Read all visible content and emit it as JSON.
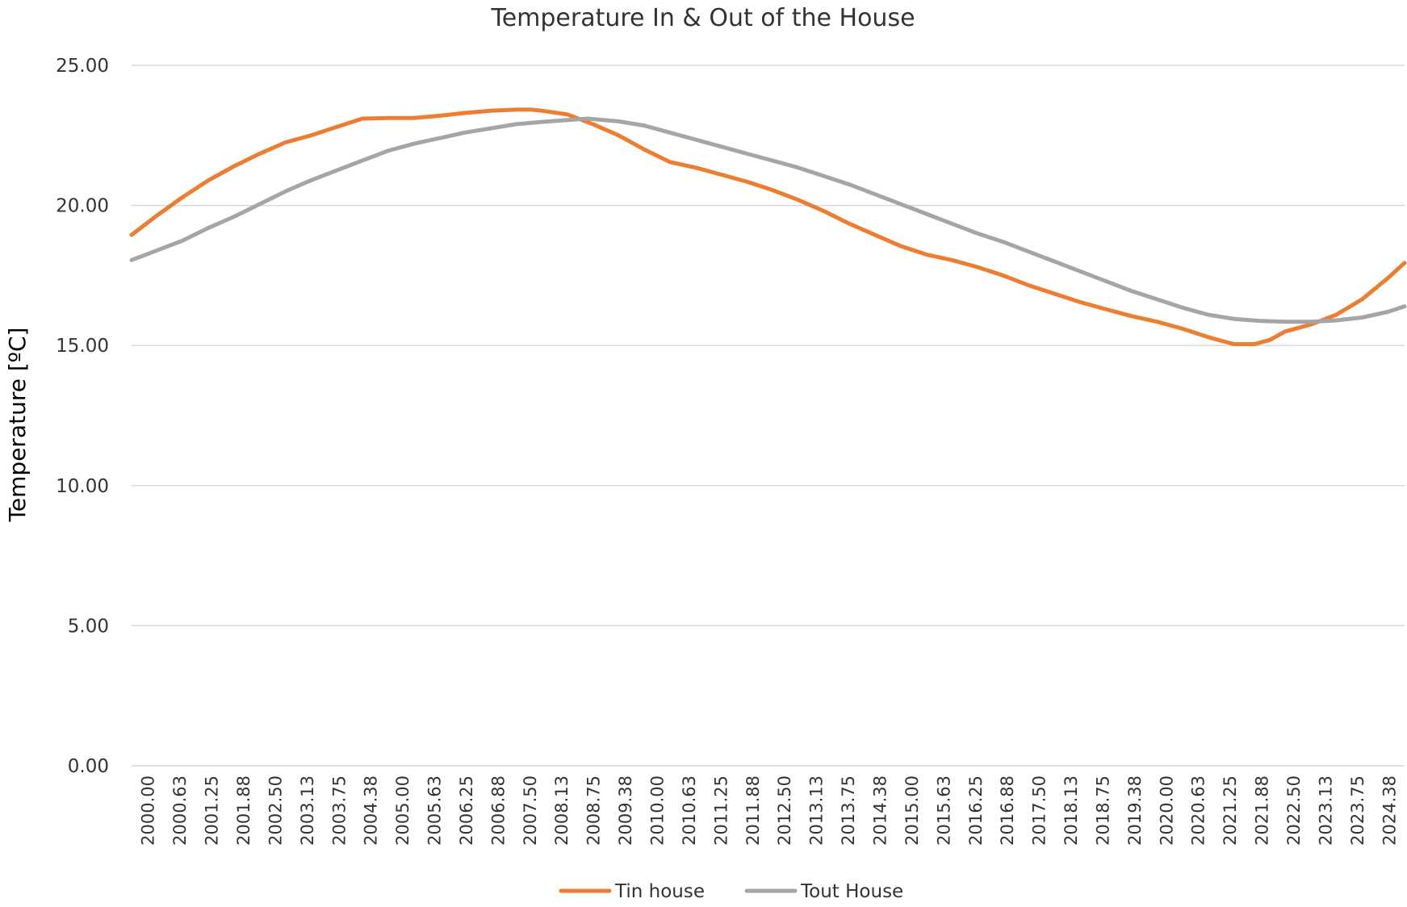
{
  "chart_data": {
    "type": "line",
    "title": "Temperature In & Out of the House",
    "xlabel": "",
    "ylabel": "Temperature  [ºC]",
    "ylim": [
      0,
      25
    ],
    "yticks": [
      "0.00",
      "5.00",
      "10.00",
      "15.00",
      "20.00",
      "25.00"
    ],
    "xlim": [
      2000.0,
      2024.83
    ],
    "xtick_labels": [
      "2000.00",
      "2000.63",
      "2001.25",
      "2001.88",
      "2002.50",
      "2003.13",
      "2003.75",
      "2004.38",
      "2005.00",
      "2005.63",
      "2006.25",
      "2006.88",
      "2007.50",
      "2008.13",
      "2008.75",
      "2009.38",
      "2010.00",
      "2010.63",
      "2011.25",
      "2011.88",
      "2012.50",
      "2013.13",
      "2013.75",
      "2014.38",
      "2015.00",
      "2015.63",
      "2016.25",
      "2016.88",
      "2017.50",
      "2018.13",
      "2018.75",
      "2019.38",
      "2020.00",
      "2020.63",
      "2021.25",
      "2021.88",
      "2022.50",
      "2023.13",
      "2023.75",
      "2024.38"
    ],
    "grid": true,
    "legend_position": "bottom",
    "series": [
      {
        "name": "Tin house",
        "color": "#ED7D31",
        "x": [
          2000.0,
          2000.5,
          2001.0,
          2001.5,
          2002.0,
          2002.5,
          2003.0,
          2003.5,
          2004.0,
          2004.5,
          2005.0,
          2005.5,
          2006.0,
          2006.5,
          2007.0,
          2007.5,
          2007.8,
          2008.0,
          2008.5,
          2009.0,
          2009.5,
          2010.0,
          2010.5,
          2011.0,
          2011.5,
          2012.0,
          2012.5,
          2013.0,
          2013.5,
          2014.0,
          2014.5,
          2015.0,
          2015.5,
          2016.0,
          2016.5,
          2017.0,
          2017.5,
          2018.0,
          2018.5,
          2019.0,
          2019.5,
          2020.0,
          2020.5,
          2021.0,
          2021.5,
          2021.9,
          2022.2,
          2022.5,
          2023.0,
          2023.5,
          2024.0,
          2024.5,
          2024.83
        ],
        "values": [
          18.95,
          19.65,
          20.3,
          20.9,
          21.4,
          21.85,
          22.25,
          22.5,
          22.8,
          23.1,
          23.12,
          23.12,
          23.2,
          23.3,
          23.38,
          23.42,
          23.42,
          23.38,
          23.25,
          22.9,
          22.5,
          22.0,
          21.55,
          21.35,
          21.1,
          20.85,
          20.55,
          20.2,
          19.8,
          19.35,
          18.95,
          18.55,
          18.25,
          18.05,
          17.8,
          17.5,
          17.15,
          16.85,
          16.55,
          16.3,
          16.05,
          15.85,
          15.6,
          15.3,
          15.05,
          15.05,
          15.2,
          15.5,
          15.75,
          16.1,
          16.65,
          17.4,
          17.95
        ]
      },
      {
        "name": "Tout House",
        "color": "#A5A5A5",
        "x": [
          2000.0,
          2000.5,
          2001.0,
          2001.5,
          2002.0,
          2002.5,
          2003.0,
          2003.5,
          2004.0,
          2004.5,
          2005.0,
          2005.5,
          2006.0,
          2006.5,
          2007.0,
          2007.5,
          2008.0,
          2008.5,
          2008.9,
          2009.5,
          2010.0,
          2010.5,
          2011.0,
          2011.5,
          2012.0,
          2012.5,
          2013.0,
          2013.5,
          2014.0,
          2014.5,
          2015.0,
          2015.5,
          2016.0,
          2016.5,
          2017.0,
          2017.5,
          2018.0,
          2018.5,
          2019.0,
          2019.5,
          2020.0,
          2020.5,
          2021.0,
          2021.5,
          2022.0,
          2022.5,
          2023.0,
          2023.5,
          2024.0,
          2024.5,
          2024.83
        ],
        "values": [
          18.05,
          18.4,
          18.75,
          19.2,
          19.6,
          20.05,
          20.5,
          20.9,
          21.25,
          21.6,
          21.95,
          22.2,
          22.4,
          22.6,
          22.75,
          22.9,
          22.98,
          23.05,
          23.1,
          23.0,
          22.85,
          22.6,
          22.35,
          22.1,
          21.85,
          21.6,
          21.35,
          21.05,
          20.75,
          20.4,
          20.05,
          19.7,
          19.35,
          19.0,
          18.7,
          18.35,
          18.0,
          17.65,
          17.3,
          16.95,
          16.65,
          16.35,
          16.1,
          15.95,
          15.88,
          15.85,
          15.85,
          15.9,
          16.0,
          16.2,
          16.4
        ]
      }
    ]
  }
}
